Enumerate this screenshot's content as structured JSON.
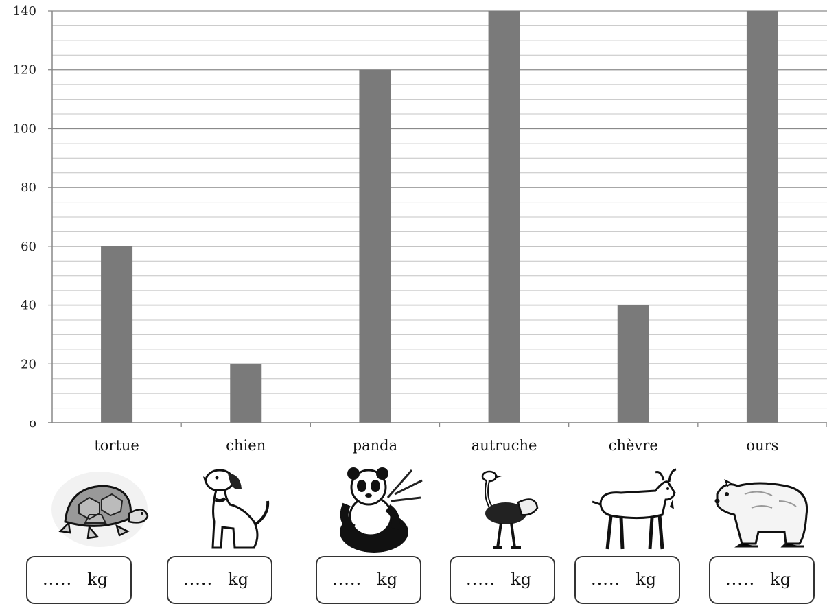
{
  "chart_data": {
    "type": "bar",
    "categories": [
      "tortue",
      "chien",
      "panda",
      "autruche",
      "chèvre",
      "ours"
    ],
    "values": [
      60,
      20,
      120,
      140,
      40,
      140
    ],
    "ylim": [
      0,
      140
    ],
    "y_ticks": [
      0,
      20,
      40,
      60,
      80,
      100,
      120,
      140
    ],
    "y_tick_labels": [
      "o",
      "20",
      "40",
      "60",
      "80",
      "100",
      "120",
      "140"
    ],
    "minor_step": 5,
    "grid": true,
    "bar_color": "#7a7a7a",
    "title": "",
    "xlabel": "",
    "ylabel": ""
  },
  "animals": [
    {
      "name": "turtle-icon"
    },
    {
      "name": "dog-icon"
    },
    {
      "name": "panda-icon"
    },
    {
      "name": "ostrich-icon"
    },
    {
      "name": "goat-icon"
    },
    {
      "name": "bear-icon"
    }
  ],
  "answers": [
    {
      "dots": ".....",
      "unit": "kg"
    },
    {
      "dots": ".....",
      "unit": "kg"
    },
    {
      "dots": ".....",
      "unit": "kg"
    },
    {
      "dots": ".....",
      "unit": "kg"
    },
    {
      "dots": ".....",
      "unit": "kg"
    },
    {
      "dots": ".....",
      "unit": "kg"
    }
  ]
}
